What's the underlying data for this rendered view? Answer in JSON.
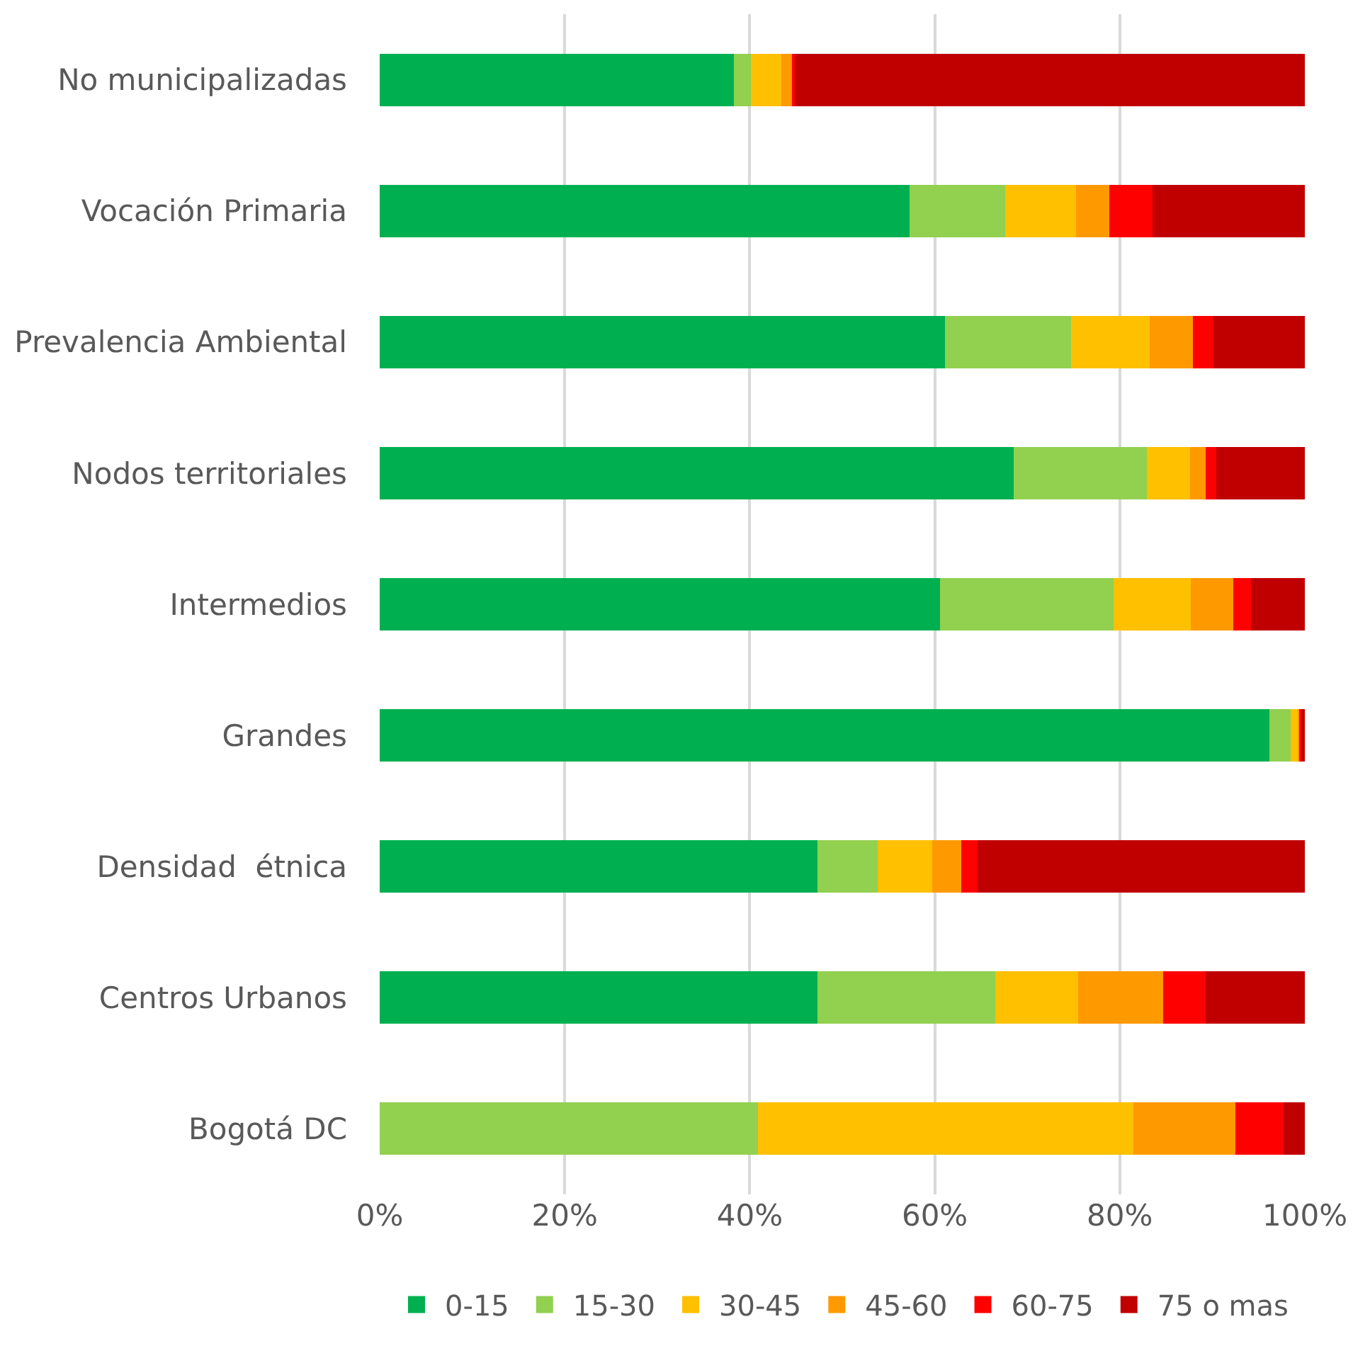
{
  "chart_data": {
    "type": "bar",
    "orientation": "horizontal",
    "stacked": true,
    "categories": [
      "No municipalizadas",
      "Vocación Primaria",
      "Prevalencia Ambiental",
      "Nodos territoriales",
      "Intermedios",
      "Grandes",
      "Densidad  étnica",
      "Centros Urbanos",
      "Bogotá DC"
    ],
    "series": [
      {
        "name": "0-15",
        "color": "#00b050",
        "values": [
          38.3,
          57.3,
          61.1,
          68.5,
          60.6,
          96.2,
          47.3,
          47.3,
          0
        ]
      },
      {
        "name": "15-30",
        "color": "#92d050",
        "values": [
          1.8,
          10.3,
          13.6,
          14.4,
          18.7,
          2.3,
          6.5,
          19.2,
          40.9
        ]
      },
      {
        "name": "30-45",
        "color": "#ffc000",
        "values": [
          3.3,
          7.7,
          8.5,
          4.7,
          8.4,
          0.8,
          5.9,
          9.0,
          40.6
        ]
      },
      {
        "name": "45-60",
        "color": "#ff9900",
        "values": [
          1.3,
          3.6,
          4.7,
          1.7,
          4.6,
          0.2,
          3.2,
          9.2,
          11.0
        ]
      },
      {
        "name": "60-75",
        "color": "#ff0000",
        "values": [
          0.2,
          4.6,
          2.2,
          1.1,
          1.9,
          0.1,
          1.7,
          4.6,
          5.2
        ]
      },
      {
        "name": "75 o mas",
        "color": "#c00000",
        "values": [
          55.1,
          16.5,
          9.9,
          9.6,
          5.8,
          0.4,
          35.4,
          10.7,
          2.3
        ]
      }
    ],
    "xlim": [
      0,
      100
    ],
    "xticks": [
      {
        "value": 0,
        "label": "0%"
      },
      {
        "value": 20,
        "label": "20%"
      },
      {
        "value": 40,
        "label": "40%"
      },
      {
        "value": 60,
        "label": "60%"
      },
      {
        "value": 80,
        "label": "80%"
      },
      {
        "value": 100,
        "label": "100%"
      }
    ],
    "grid": "x",
    "legend": "bottom"
  }
}
